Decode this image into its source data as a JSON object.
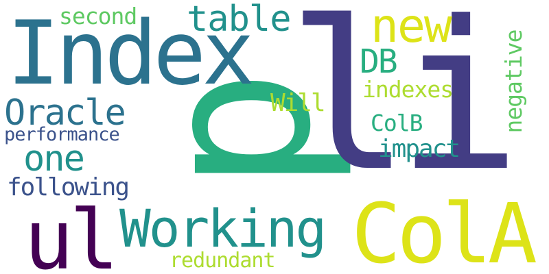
{
  "words": {
    "li": "li",
    "index": "Index",
    "p": "p",
    "colA": "ColA",
    "ul": "ul",
    "working": "Working",
    "new": "new",
    "table": "table",
    "oracle": "Oracle",
    "one": "one",
    "db": "DB",
    "second": "second",
    "following": "following",
    "performance": "performance",
    "indexes": "indexes",
    "negative": "negative",
    "will": "Will",
    "colB": "ColB",
    "impact": "impact",
    "redundant": "redundant"
  },
  "colors": {
    "dark_purple": "#440154",
    "indigo": "#433d84",
    "navy_blue": "#3b528b",
    "teal_blue": "#2c728e",
    "teal": "#21918c",
    "green": "#28ae80",
    "light_green": "#5ec962",
    "yellow_green": "#addc30",
    "yellow": "#dde318"
  }
}
